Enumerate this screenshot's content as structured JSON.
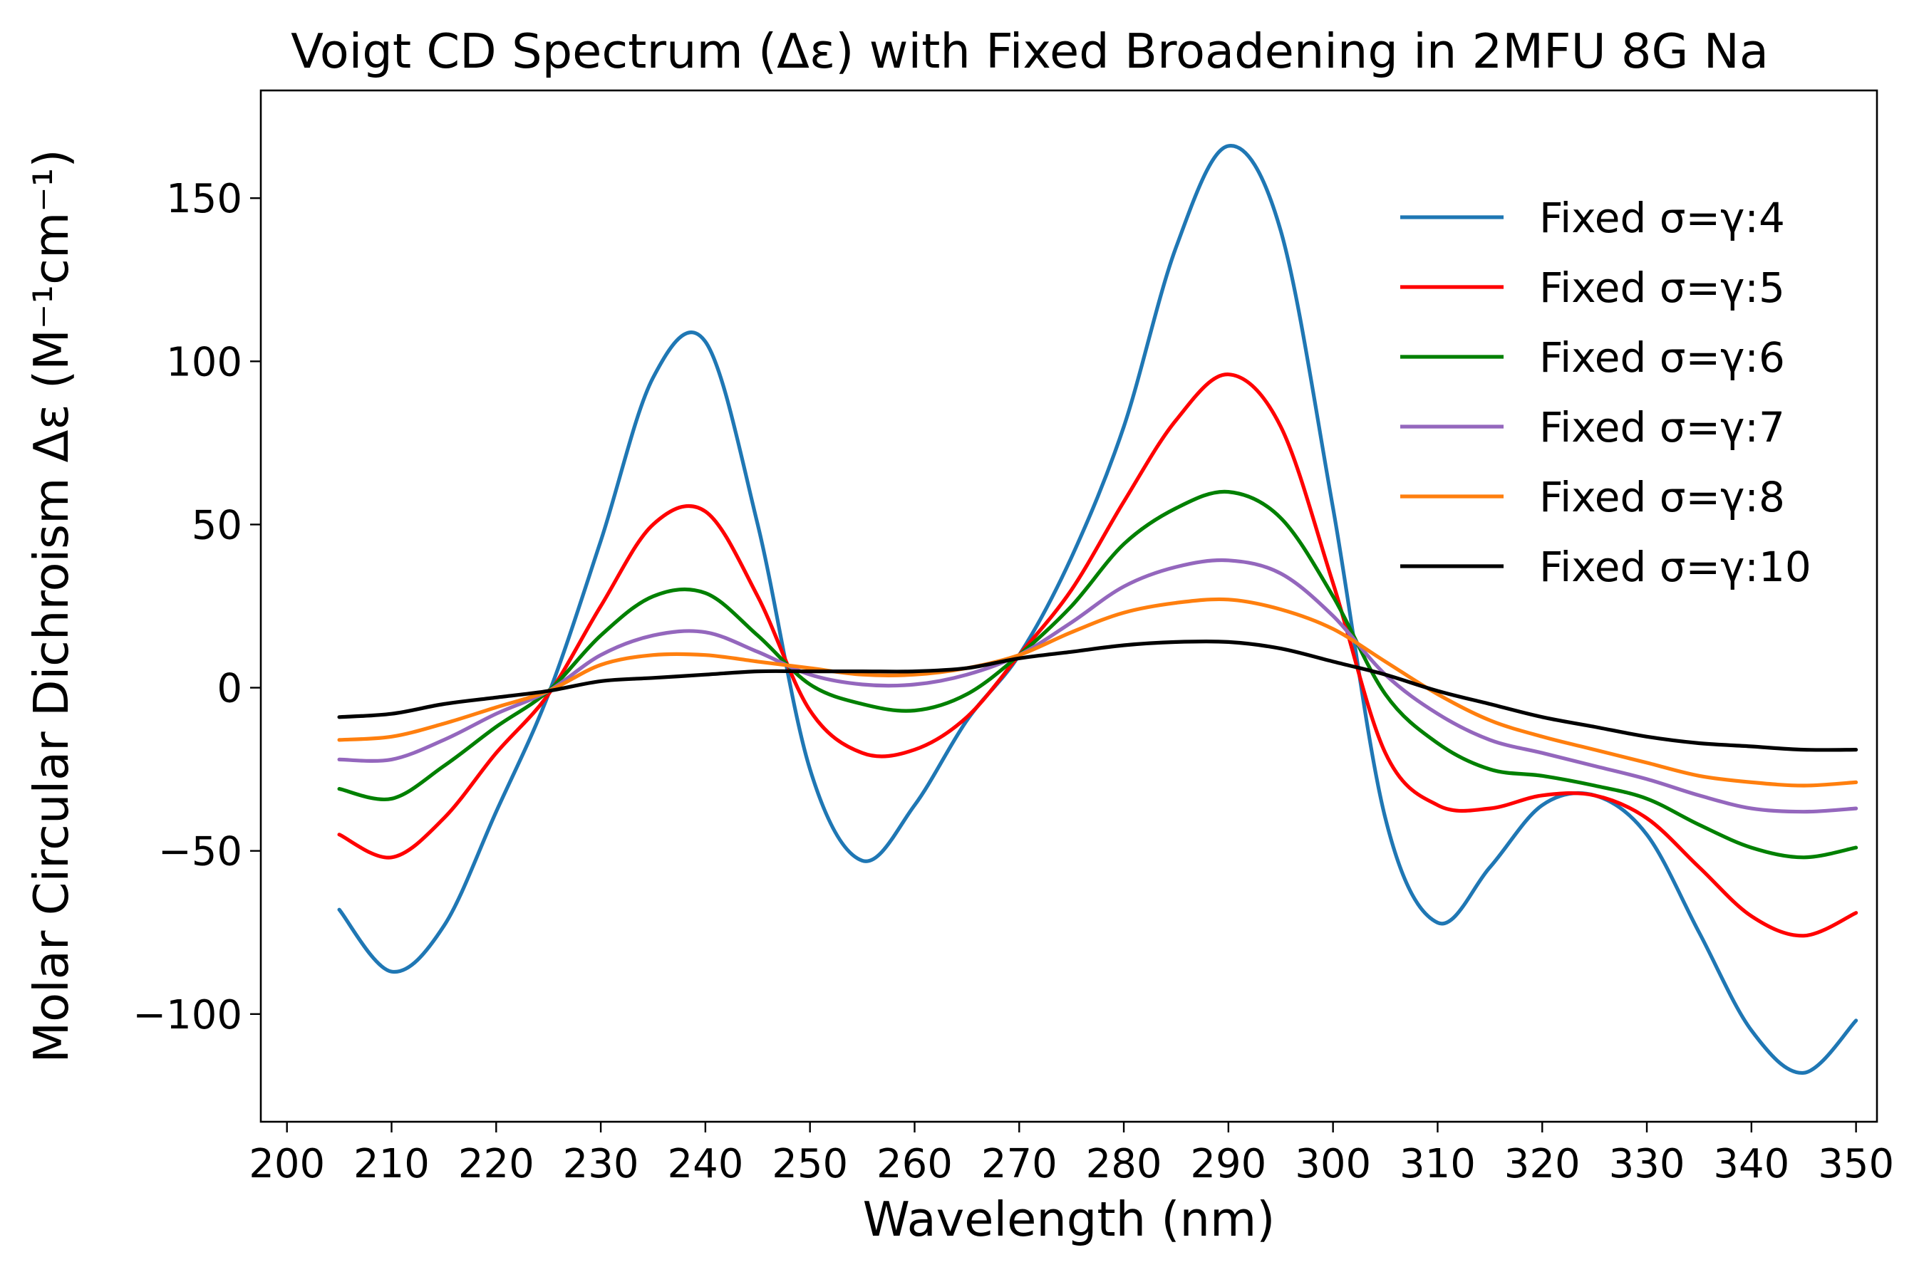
{
  "chart_data": {
    "type": "line",
    "title": "Voigt CD Spectrum (Δε) with Fixed Broadening in 2MFU 8G Na",
    "xlabel": "Wavelength (nm)",
    "ylabel": "Molar Circular Dichroism Δε (M⁻¹cm⁻¹)",
    "xlim": [
      197.5,
      352.0
    ],
    "ylim": [
      -133,
      183
    ],
    "xticks": [
      200,
      210,
      220,
      230,
      240,
      250,
      260,
      270,
      280,
      290,
      300,
      310,
      320,
      330,
      340,
      350
    ],
    "yticks": [
      150,
      100,
      50,
      0,
      -50,
      -100
    ],
    "ytick_labels": [
      "150",
      "100",
      "50",
      "0",
      "−50",
      "−100"
    ],
    "grid": false,
    "legend_position": "upper-right",
    "x": [
      205,
      210,
      215,
      220,
      225,
      230,
      235,
      240,
      245,
      250,
      255,
      260,
      265,
      270,
      275,
      280,
      285,
      290,
      295,
      300,
      305,
      310,
      315,
      320,
      325,
      330,
      335,
      340,
      345,
      350
    ],
    "series": [
      {
        "name": "Fixed σ=γ:4",
        "color": "#1f77b4",
        "values": [
          -68,
          -87,
          -73,
          -38,
          -2,
          45,
          95,
          106,
          50,
          -25,
          -53,
          -36,
          -10,
          10,
          40,
          80,
          135,
          166,
          140,
          55,
          -40,
          -72,
          -55,
          -36,
          -33,
          -45,
          -75,
          -105,
          -118,
          -102
        ]
      },
      {
        "name": "Fixed σ=γ:5",
        "color": "#ff0000",
        "values": [
          -45,
          -52,
          -40,
          -20,
          -2,
          25,
          50,
          54,
          28,
          -7,
          -20,
          -19,
          -9,
          10,
          30,
          57,
          82,
          96,
          80,
          32,
          -20,
          -36,
          -37,
          -33,
          -33,
          -40,
          -55,
          -70,
          -76,
          -69
        ]
      },
      {
        "name": "Fixed σ=γ:6",
        "color": "#008000",
        "values": [
          -31,
          -34,
          -24,
          -12,
          -1,
          16,
          28,
          29,
          16,
          1,
          -5,
          -7,
          -2,
          10,
          25,
          44,
          55,
          60,
          52,
          28,
          -2,
          -17,
          -25,
          -27,
          -30,
          -34,
          -42,
          -49,
          -52,
          -49
        ]
      },
      {
        "name": "Fixed σ=γ:7",
        "color": "#9467bd",
        "values": [
          -22,
          -22,
          -16,
          -8,
          -1,
          10,
          16,
          17,
          11,
          4,
          1,
          1,
          4,
          10,
          20,
          31,
          37,
          39,
          35,
          22,
          4,
          -8,
          -16,
          -20,
          -24,
          -28,
          -33,
          -37,
          -38,
          -37
        ]
      },
      {
        "name": "Fixed σ=γ:8",
        "color": "#ff7f0e",
        "values": [
          -16,
          -15,
          -11,
          -6,
          -1,
          7,
          10,
          10,
          8,
          6,
          4,
          4,
          6,
          10,
          17,
          23,
          26,
          27,
          24,
          18,
          8,
          -2,
          -10,
          -15,
          -19,
          -23,
          -27,
          -29,
          -30,
          -29
        ]
      },
      {
        "name": "Fixed σ=γ:10",
        "color": "#000000",
        "values": [
          -9,
          -8,
          -5,
          -3,
          -1,
          2,
          3,
          4,
          5,
          5,
          5,
          5,
          6,
          9,
          11,
          13,
          14,
          14,
          12,
          8,
          4,
          -1,
          -5,
          -9,
          -12,
          -15,
          -17,
          -18,
          -19,
          -19
        ]
      }
    ]
  }
}
